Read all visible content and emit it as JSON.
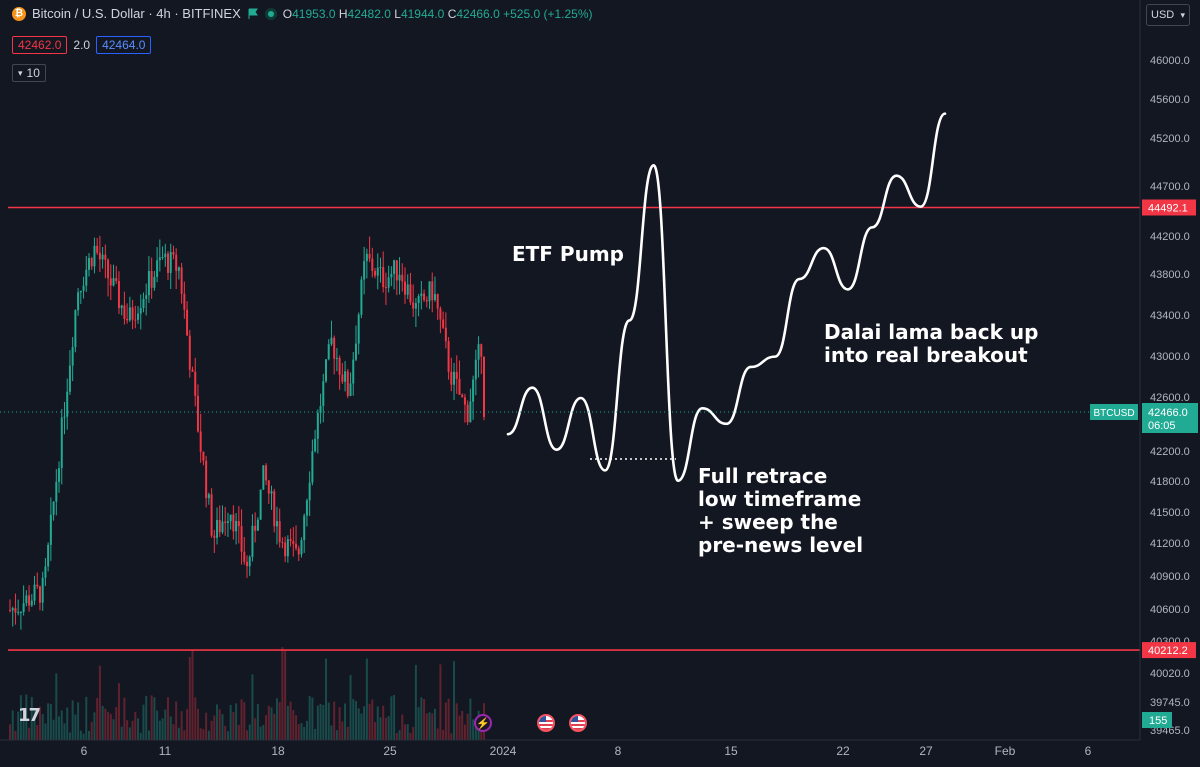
{
  "symbol": {
    "title": "Bitcoin / U.S. Dollar · 4h · BITFINEX",
    "logo_glyph": "₿",
    "ohlc": {
      "o_label": "O",
      "o": "41953.0",
      "h_label": "H",
      "h": "42482.0",
      "l_label": "L",
      "l": "41944.0",
      "c_label": "C",
      "c": "42466.0",
      "change": "+525.0 (+1.25%)"
    },
    "bid": "42462.0",
    "spread": "2.0",
    "ask": "42464.0",
    "indicator_collapse": "10"
  },
  "currency": "USD",
  "price_axis": {
    "ticks": [
      "46000.0",
      "45600.0",
      "45200.0",
      "44700.0",
      "44200.0",
      "43800.0",
      "43400.0",
      "43000.0",
      "42600.0",
      "42200.0",
      "41800.0",
      "41500.0",
      "41200.0",
      "40900.0",
      "40600.0",
      "40300.0",
      "40020.0",
      "39745.0",
      "39465.0"
    ],
    "current_label": "BTCUSD",
    "current_price": "42466.0",
    "countdown": "06:05",
    "volume_label": "155"
  },
  "time_axis": {
    "ticks": [
      "6",
      "11",
      "18",
      "25",
      "2024",
      "8",
      "15",
      "22",
      "27",
      "Feb",
      "6"
    ]
  },
  "levels": [
    {
      "value": 44492.1,
      "label": "44492.1"
    },
    {
      "value": 40212.2,
      "label": "40212.2"
    }
  ],
  "annotations": {
    "etf": "ETF Pump",
    "dalai": "Dalai lama back up\ninto real breakout",
    "retrace": "Full retrace\nlow timeframe\n+ sweep the\npre-news level"
  },
  "logo_text": "17",
  "colors": {
    "up": "#22ab94",
    "down": "#f23645",
    "level": "#f23645",
    "bg": "#131722",
    "grid": "#2a2e39",
    "projection": "#ffffff"
  },
  "chart_data": {
    "type": "candlestick",
    "timeframe": "4h",
    "price_range": [
      39465,
      46100
    ],
    "overview_close_path": [
      [
        1,
        40600
      ],
      [
        3,
        40800
      ],
      [
        5,
        43700
      ],
      [
        6,
        44100
      ],
      [
        8,
        43400
      ],
      [
        9,
        43700
      ],
      [
        10,
        44000
      ],
      [
        11,
        43900
      ],
      [
        12,
        42500
      ],
      [
        13,
        41300
      ],
      [
        14,
        41600
      ],
      [
        15,
        41000
      ],
      [
        16,
        41900
      ],
      [
        17,
        41300
      ],
      [
        18,
        41100
      ],
      [
        19,
        42300
      ],
      [
        20,
        43200
      ],
      [
        21,
        42700
      ],
      [
        22,
        44000
      ],
      [
        23,
        43800
      ],
      [
        24,
        43900
      ],
      [
        25,
        43500
      ],
      [
        26,
        43700
      ],
      [
        27,
        42900
      ],
      [
        28,
        42500
      ],
      [
        29,
        43300
      ],
      [
        30,
        42300
      ],
      [
        31,
        42000
      ],
      [
        32,
        42466
      ]
    ],
    "projection_path": [
      [
        1,
        42300
      ],
      [
        2,
        42750
      ],
      [
        3,
        42150
      ],
      [
        4,
        42650
      ],
      [
        5,
        41950
      ],
      [
        6,
        43400
      ],
      [
        7,
        44900
      ],
      [
        8,
        41850
      ],
      [
        9,
        42550
      ],
      [
        10,
        42400
      ],
      [
        11,
        42950
      ],
      [
        12,
        43050
      ],
      [
        13,
        43800
      ],
      [
        14,
        44100
      ],
      [
        15,
        43700
      ],
      [
        16,
        44300
      ],
      [
        17,
        44800
      ],
      [
        18,
        44500
      ],
      [
        19,
        45400
      ]
    ]
  }
}
